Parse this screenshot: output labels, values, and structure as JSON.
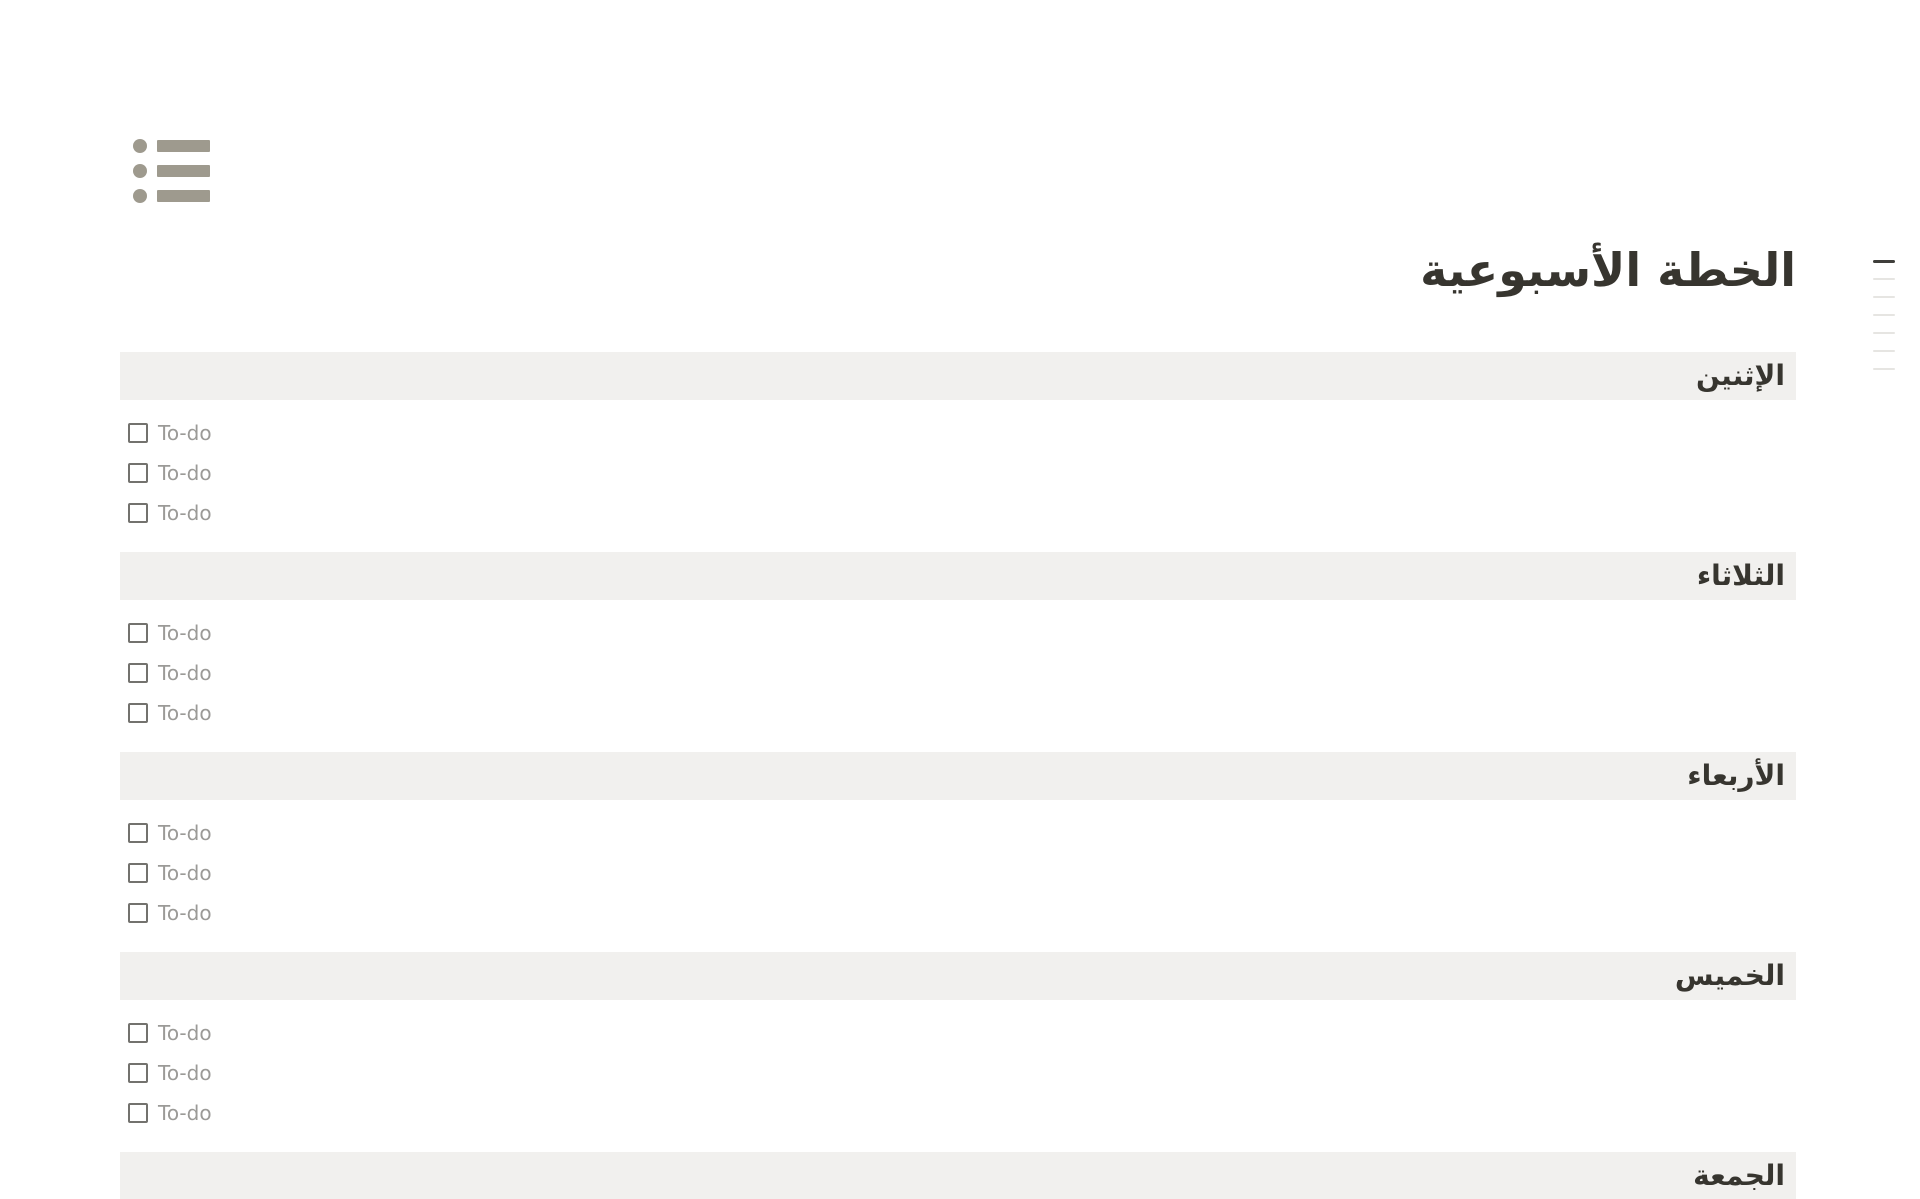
{
  "page": {
    "icon_name": "bulleted-list-icon",
    "title": "الخطة الأسبوعية"
  },
  "sections": [
    {
      "label": "الإثنين",
      "todos": [
        "To-do",
        "To-do",
        "To-do"
      ]
    },
    {
      "label": "الثلاثاء",
      "todos": [
        "To-do",
        "To-do",
        "To-do"
      ]
    },
    {
      "label": "الأربعاء",
      "todos": [
        "To-do",
        "To-do",
        "To-do"
      ]
    },
    {
      "label": "الخميس",
      "todos": [
        "To-do",
        "To-do",
        "To-do"
      ]
    },
    {
      "label": "الجمعة",
      "todos": []
    }
  ],
  "outline": {
    "line_count": 7,
    "active_line_index": 0
  },
  "colors": {
    "background": "#ffffff",
    "text_primary": "#37352f",
    "section_header_bg": "#f1f0ee",
    "todo_text": "#9b9a97",
    "checkbox_border": "#73726e",
    "page_icon": "#9e9a8e",
    "outline_active": "#3f3e3b",
    "outline_inactive": "#e6e5e2"
  }
}
